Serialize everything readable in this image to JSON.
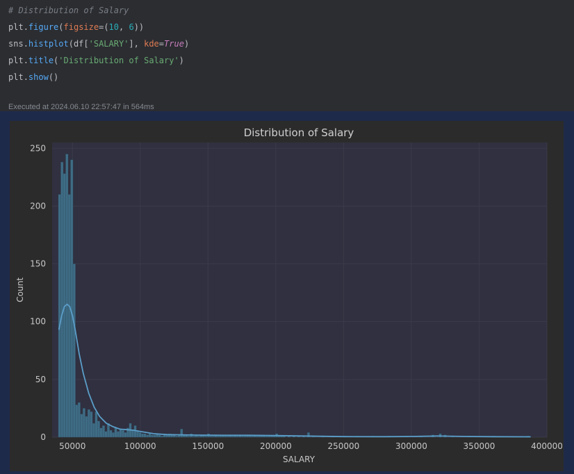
{
  "code_cell": {
    "comment": "# Distribution of Salary",
    "lines": [
      {
        "obj": "plt",
        "method": "figure",
        "args_open": "(",
        "kw": "figsize",
        "eq": "=(",
        "n1": "10",
        "sep": ", ",
        "n2": "6",
        "close": "))"
      },
      {
        "obj": "sns",
        "method": "histplot",
        "args_open": "(df[",
        "str": "'SALARY'",
        "mid": "], ",
        "kw": "kde",
        "eq": "=",
        "bool": "True",
        "close": ")"
      },
      {
        "obj": "plt",
        "method": "title",
        "args_open": "(",
        "str": "'Distribution of Salary'",
        "close": ")"
      },
      {
        "obj": "plt",
        "method": "show",
        "close": "()"
      }
    ],
    "dot": ".",
    "executed": "Executed at 2024.06.10 22:57:47 in 564ms"
  },
  "colors": {
    "bar_fill": "#3f6c85",
    "bar_edge": "#2b4a5c",
    "kde_line": "#5b9ec9",
    "plot_bg": "#303040",
    "grid": "#3a3a4a"
  },
  "chart_data": {
    "type": "bar",
    "title": "Distribution of Salary",
    "xlabel": "SALARY",
    "ylabel": "Count",
    "xlim": [
      25000,
      400000
    ],
    "ylim": [
      0,
      255
    ],
    "x_ticks": [
      50000,
      100000,
      150000,
      200000,
      250000,
      300000,
      350000,
      400000
    ],
    "y_ticks": [
      0,
      50,
      100,
      150,
      200,
      250
    ],
    "grid": true,
    "bin_width": 1800,
    "histogram": [
      {
        "x": 40500,
        "y": 210
      },
      {
        "x": 42300,
        "y": 238
      },
      {
        "x": 44100,
        "y": 228
      },
      {
        "x": 45900,
        "y": 245
      },
      {
        "x": 47700,
        "y": 210
      },
      {
        "x": 49500,
        "y": 240
      },
      {
        "x": 51300,
        "y": 150
      },
      {
        "x": 53100,
        "y": 28
      },
      {
        "x": 54900,
        "y": 30
      },
      {
        "x": 56700,
        "y": 20
      },
      {
        "x": 58500,
        "y": 25
      },
      {
        "x": 60300,
        "y": 18
      },
      {
        "x": 62100,
        "y": 24
      },
      {
        "x": 63900,
        "y": 22
      },
      {
        "x": 65700,
        "y": 12
      },
      {
        "x": 67500,
        "y": 22
      },
      {
        "x": 69300,
        "y": 14
      },
      {
        "x": 71100,
        "y": 8
      },
      {
        "x": 72900,
        "y": 10
      },
      {
        "x": 74700,
        "y": 5
      },
      {
        "x": 76500,
        "y": 12
      },
      {
        "x": 78300,
        "y": 6
      },
      {
        "x": 80100,
        "y": 4
      },
      {
        "x": 81900,
        "y": 8
      },
      {
        "x": 83700,
        "y": 5
      },
      {
        "x": 85500,
        "y": 7
      },
      {
        "x": 87300,
        "y": 6
      },
      {
        "x": 89100,
        "y": 4
      },
      {
        "x": 90900,
        "y": 8
      },
      {
        "x": 92700,
        "y": 12
      },
      {
        "x": 94500,
        "y": 6
      },
      {
        "x": 96300,
        "y": 10
      },
      {
        "x": 98100,
        "y": 5
      },
      {
        "x": 99900,
        "y": 4
      },
      {
        "x": 101700,
        "y": 3
      },
      {
        "x": 103500,
        "y": 3
      },
      {
        "x": 105300,
        "y": 2
      },
      {
        "x": 107100,
        "y": 3
      },
      {
        "x": 108900,
        "y": 2
      },
      {
        "x": 110700,
        "y": 2
      },
      {
        "x": 112500,
        "y": 3
      },
      {
        "x": 114300,
        "y": 2
      },
      {
        "x": 116100,
        "y": 1
      },
      {
        "x": 117900,
        "y": 2
      },
      {
        "x": 119700,
        "y": 2
      },
      {
        "x": 121500,
        "y": 3
      },
      {
        "x": 123300,
        "y": 2
      },
      {
        "x": 125100,
        "y": 2
      },
      {
        "x": 126900,
        "y": 1
      },
      {
        "x": 128700,
        "y": 2
      },
      {
        "x": 130500,
        "y": 7
      },
      {
        "x": 132300,
        "y": 2
      },
      {
        "x": 134100,
        "y": 2
      },
      {
        "x": 135900,
        "y": 1
      },
      {
        "x": 137700,
        "y": 3
      },
      {
        "x": 139500,
        "y": 1
      },
      {
        "x": 141300,
        "y": 2
      },
      {
        "x": 143100,
        "y": 1
      },
      {
        "x": 144900,
        "y": 2
      },
      {
        "x": 146700,
        "y": 2
      },
      {
        "x": 148500,
        "y": 1
      },
      {
        "x": 150300,
        "y": 3
      },
      {
        "x": 152100,
        "y": 1
      },
      {
        "x": 153900,
        "y": 1
      },
      {
        "x": 155700,
        "y": 2
      },
      {
        "x": 157500,
        "y": 1
      },
      {
        "x": 159300,
        "y": 1
      },
      {
        "x": 161100,
        "y": 2
      },
      {
        "x": 162900,
        "y": 1
      },
      {
        "x": 164700,
        "y": 1
      },
      {
        "x": 166500,
        "y": 2
      },
      {
        "x": 168300,
        "y": 1
      },
      {
        "x": 170100,
        "y": 2
      },
      {
        "x": 171900,
        "y": 1
      },
      {
        "x": 173700,
        "y": 2
      },
      {
        "x": 175500,
        "y": 1
      },
      {
        "x": 177300,
        "y": 1
      },
      {
        "x": 179100,
        "y": 2
      },
      {
        "x": 180900,
        "y": 2
      },
      {
        "x": 182700,
        "y": 1
      },
      {
        "x": 184500,
        "y": 2
      },
      {
        "x": 186300,
        "y": 1
      },
      {
        "x": 188100,
        "y": 1
      },
      {
        "x": 189900,
        "y": 2
      },
      {
        "x": 191700,
        "y": 1
      },
      {
        "x": 193500,
        "y": 1
      },
      {
        "x": 195300,
        "y": 2
      },
      {
        "x": 197100,
        "y": 1
      },
      {
        "x": 198900,
        "y": 1
      },
      {
        "x": 200700,
        "y": 3
      },
      {
        "x": 202500,
        "y": 1
      },
      {
        "x": 204300,
        "y": 1
      },
      {
        "x": 206100,
        "y": 1
      },
      {
        "x": 209700,
        "y": 1
      },
      {
        "x": 213300,
        "y": 1
      },
      {
        "x": 216900,
        "y": 1
      },
      {
        "x": 220500,
        "y": 1
      },
      {
        "x": 224100,
        "y": 4
      },
      {
        "x": 227700,
        "y": 1
      },
      {
        "x": 234900,
        "y": 1
      },
      {
        "x": 242100,
        "y": 1
      },
      {
        "x": 251100,
        "y": 1
      },
      {
        "x": 260100,
        "y": 1
      },
      {
        "x": 271800,
        "y": 1
      },
      {
        "x": 283500,
        "y": 1
      },
      {
        "x": 296100,
        "y": 1
      },
      {
        "x": 306900,
        "y": 1
      },
      {
        "x": 315900,
        "y": 2
      },
      {
        "x": 321300,
        "y": 3
      },
      {
        "x": 324900,
        "y": 2
      },
      {
        "x": 330300,
        "y": 1
      },
      {
        "x": 342900,
        "y": 1
      },
      {
        "x": 360900,
        "y": 1
      },
      {
        "x": 386100,
        "y": 1
      }
    ],
    "kde": [
      {
        "x": 40000,
        "y": 93
      },
      {
        "x": 42000,
        "y": 105
      },
      {
        "x": 44000,
        "y": 113
      },
      {
        "x": 46000,
        "y": 115
      },
      {
        "x": 48000,
        "y": 113
      },
      {
        "x": 50000,
        "y": 105
      },
      {
        "x": 52000,
        "y": 93
      },
      {
        "x": 55000,
        "y": 72
      },
      {
        "x": 58000,
        "y": 55
      },
      {
        "x": 62000,
        "y": 38
      },
      {
        "x": 66000,
        "y": 26
      },
      {
        "x": 70000,
        "y": 18
      },
      {
        "x": 75000,
        "y": 12
      },
      {
        "x": 80000,
        "y": 9
      },
      {
        "x": 85000,
        "y": 7
      },
      {
        "x": 90000,
        "y": 6.5
      },
      {
        "x": 95000,
        "y": 6
      },
      {
        "x": 100000,
        "y": 5
      },
      {
        "x": 110000,
        "y": 3
      },
      {
        "x": 120000,
        "y": 2.2
      },
      {
        "x": 140000,
        "y": 1.8
      },
      {
        "x": 160000,
        "y": 1.6
      },
      {
        "x": 180000,
        "y": 1.6
      },
      {
        "x": 200000,
        "y": 1.4
      },
      {
        "x": 220000,
        "y": 1
      },
      {
        "x": 250000,
        "y": 0.5
      },
      {
        "x": 280000,
        "y": 0.4
      },
      {
        "x": 300000,
        "y": 0.6
      },
      {
        "x": 320000,
        "y": 1
      },
      {
        "x": 340000,
        "y": 0.6
      },
      {
        "x": 360000,
        "y": 0.4
      },
      {
        "x": 388000,
        "y": 0.3
      }
    ]
  }
}
